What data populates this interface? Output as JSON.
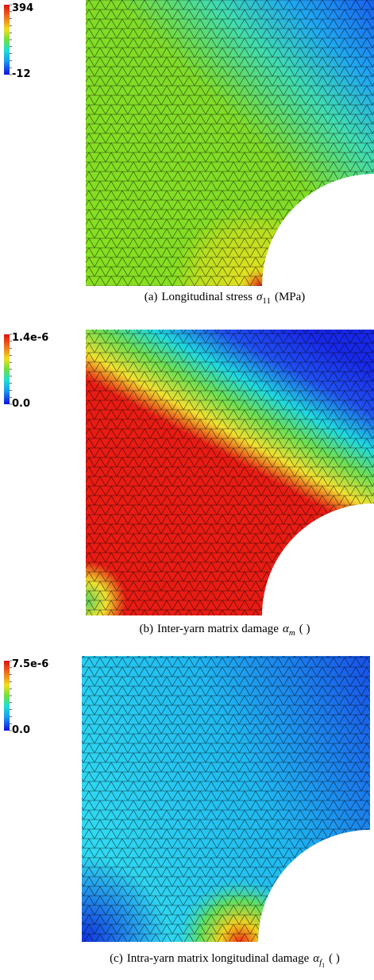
{
  "panels": [
    {
      "colorbar": {
        "max": "394",
        "min": "-12"
      },
      "caption": {
        "label": "(a)",
        "text": "Longitudinal stress",
        "symbol": "σ",
        "sub": "11",
        "unit": "(MPa)"
      }
    },
    {
      "colorbar": {
        "max": "1.4e-6",
        "min": "0.0"
      },
      "caption": {
        "label": "(b)",
        "text": "Inter-yarn matrix damage",
        "symbol": "α",
        "sub": "m",
        "unit": "( )"
      }
    },
    {
      "colorbar": {
        "max": "7.5e-6",
        "min": "0.0"
      },
      "caption": {
        "label": "(c)",
        "text": "Intra-yarn matrix longitudinal damage",
        "symbol": "α",
        "sub": "f",
        "subsub": "1",
        "unit": "( )"
      }
    }
  ]
}
